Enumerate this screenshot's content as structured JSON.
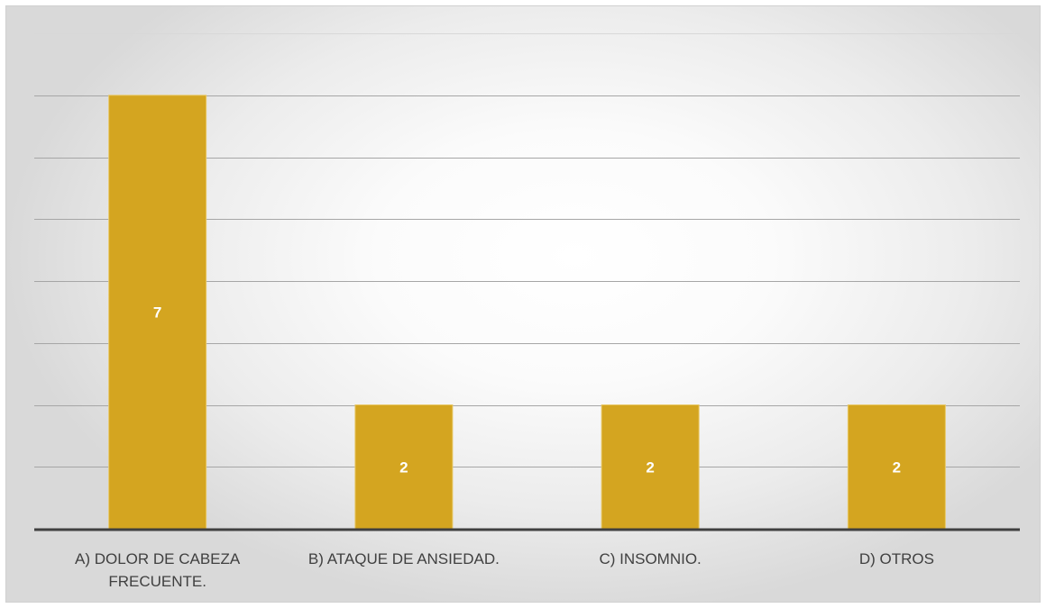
{
  "chart_data": {
    "type": "bar",
    "categories": [
      [
        "A) DOLOR DE CABEZA",
        "FRECUENTE."
      ],
      [
        "B) ATAQUE DE ANSIEDAD."
      ],
      [
        "C) INSOMNIO."
      ],
      [
        "D) OTROS"
      ]
    ],
    "values": [
      7,
      2,
      2,
      2
    ],
    "value_labels": [
      "7",
      "2",
      "2",
      "2"
    ],
    "ylim": [
      0,
      8
    ],
    "grid": true,
    "bar_color": "#D4A520",
    "label_color": "#FFFFFF",
    "axis_color": "#404040",
    "gridline_color": "#A6A6A6",
    "category_label_color": "#404040"
  }
}
